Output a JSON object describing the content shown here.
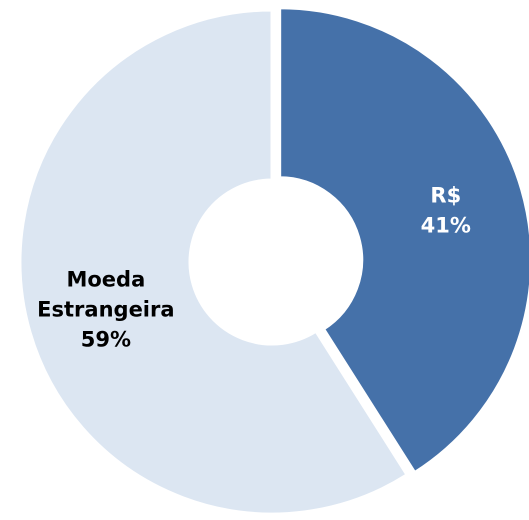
{
  "chart_data": {
    "type": "donut",
    "categories": [
      "R$",
      "Moeda Estrangeira"
    ],
    "values": [
      41,
      59
    ],
    "value_labels": [
      "41%",
      "59%"
    ],
    "colors": [
      "#4571a9",
      "#dce6f2"
    ],
    "label_colors": [
      "#ffffff",
      "#000000"
    ]
  }
}
